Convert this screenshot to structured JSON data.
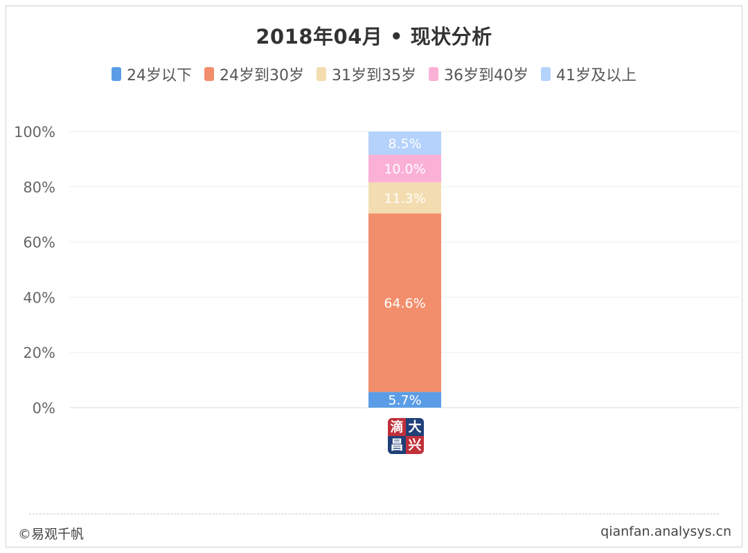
{
  "colors": {
    "under24": "#5a9de6",
    "24to30": "#f28e6c",
    "31to35": "#f3ddb0",
    "36to40": "#fbb0d6",
    "41plus": "#b4d2fb",
    "grid": "#eeeeee",
    "axis_text": "#666666"
  },
  "chart_data": {
    "type": "bar",
    "stacked": true,
    "title": "2018年04月 • 现状分析",
    "categories": [
      ""
    ],
    "ylim": [
      0,
      100
    ],
    "y_ticks": [
      "0%",
      "20%",
      "40%",
      "60%",
      "80%",
      "100%"
    ],
    "legend_position": "top-center",
    "grid": true,
    "series": [
      {
        "name": "24岁以下",
        "values": [
          5.7
        ],
        "label": "5.7%",
        "color_key": "under24"
      },
      {
        "name": "24岁到30岁",
        "values": [
          64.6
        ],
        "label": "64.6%",
        "color_key": "24to30"
      },
      {
        "name": "31岁到35岁",
        "values": [
          11.3
        ],
        "label": "11.3%",
        "color_key": "31to35"
      },
      {
        "name": "36岁到40岁",
        "values": [
          10.0
        ],
        "label": "10.0%",
        "color_key": "36to40"
      },
      {
        "name": "41岁及以上",
        "values": [
          8.5
        ],
        "label": "8.5%",
        "color_key": "41plus"
      }
    ]
  },
  "stamp": {
    "chars": [
      "滴",
      "大",
      "昌",
      "兴"
    ]
  },
  "footer": {
    "left": "©易观千帆",
    "right": "qianfan.analysys.cn"
  }
}
